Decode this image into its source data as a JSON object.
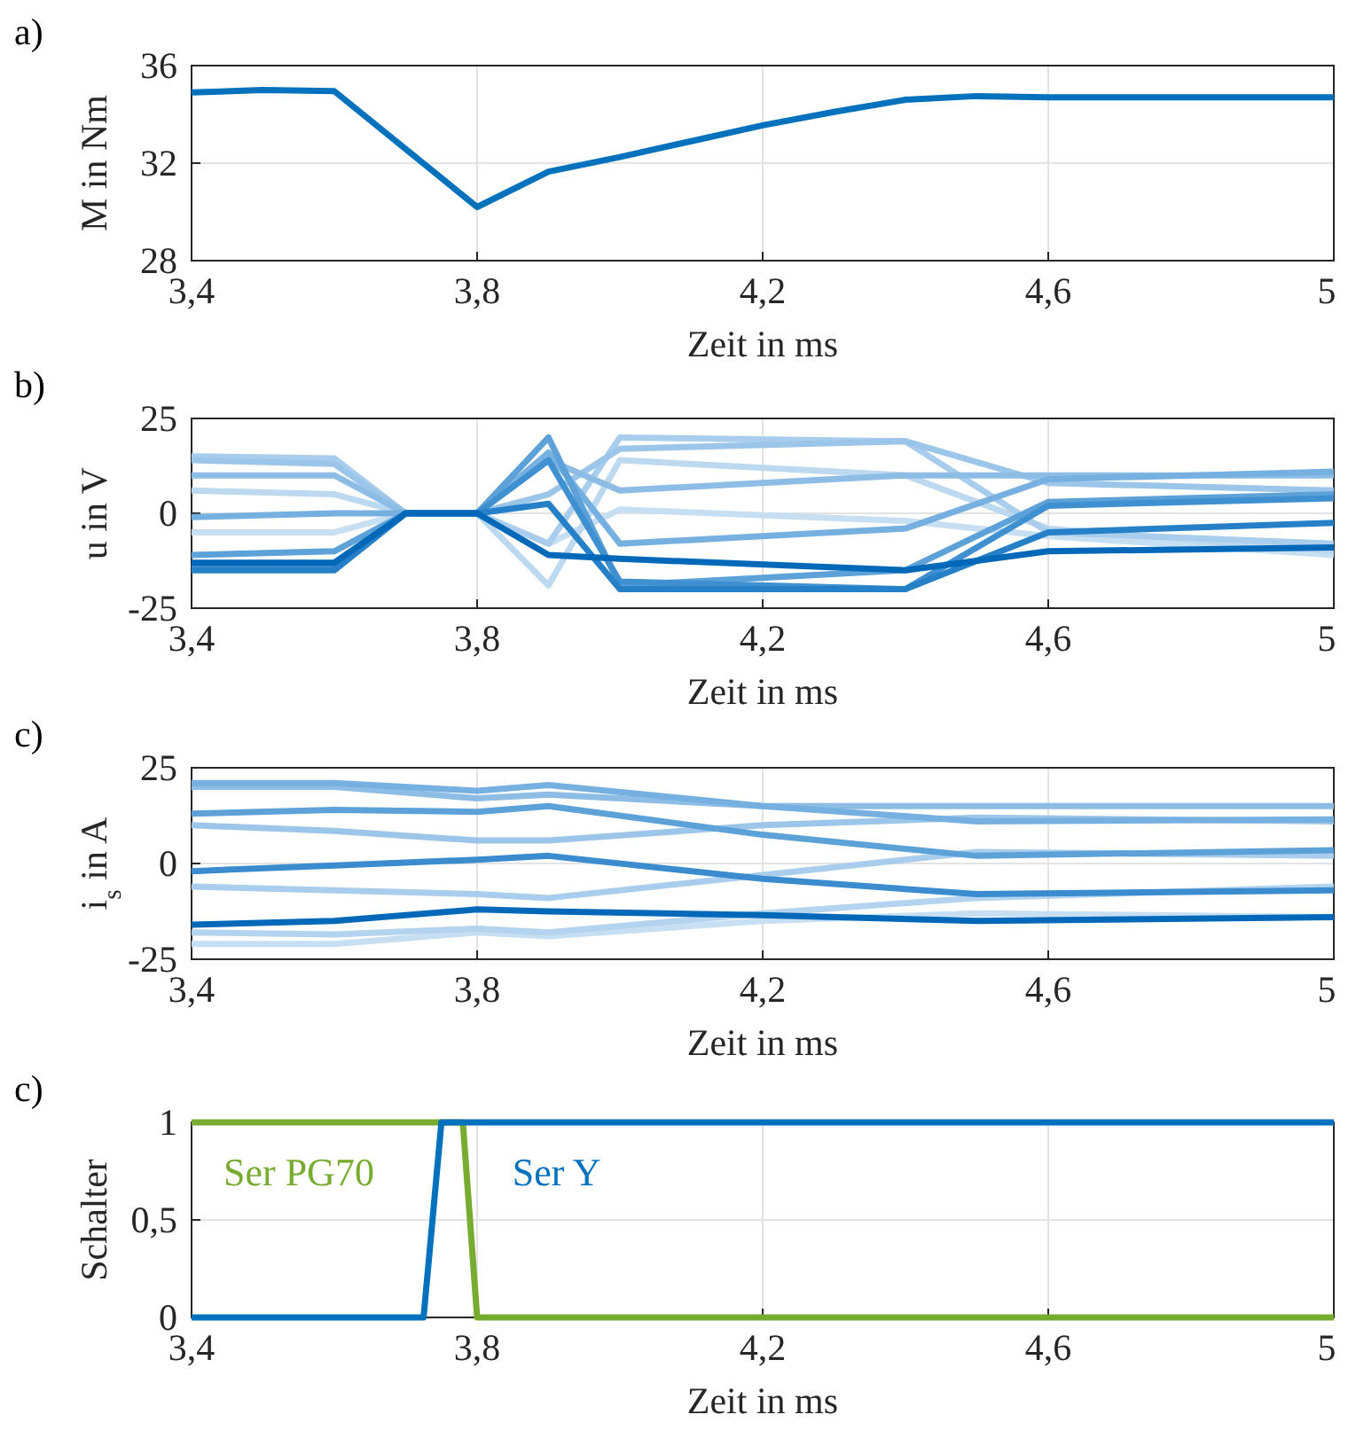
{
  "chart_data": [
    {
      "type": "line",
      "title": "a)",
      "xlabel": "Zeit in ms",
      "ylabel": "M in Nm",
      "xlim": [
        3.4,
        5
      ],
      "xticks": [
        {
          "value": 3.4,
          "label": "3,4"
        },
        {
          "value": 3.8,
          "label": "3,8"
        },
        {
          "value": 4.2,
          "label": "4,2"
        },
        {
          "value": 4.6,
          "label": "4,6"
        },
        {
          "value": 5,
          "label": "5"
        }
      ],
      "ylim": [
        28,
        36
      ],
      "yticks": [
        28,
        32,
        36
      ],
      "grid": true,
      "x": [
        3.4,
        3.5,
        3.6,
        3.8,
        3.9,
        4.0,
        4.1,
        4.2,
        4.3,
        4.4,
        4.5,
        4.6,
        4.8,
        5.0
      ],
      "series": [
        {
          "color": "#0072bd",
          "values": [
            34.9,
            35.0,
            34.95,
            30.2,
            31.65,
            32.25,
            32.9,
            33.55,
            34.1,
            34.6,
            34.75,
            34.7,
            34.7,
            34.7
          ]
        }
      ]
    },
    {
      "type": "line",
      "title": "b)",
      "xlabel": "Zeit in ms",
      "ylabel": "u in V",
      "xlim": [
        3.4,
        5
      ],
      "xticks": [
        {
          "value": 3.4,
          "label": "3,4"
        },
        {
          "value": 3.8,
          "label": "3,8"
        },
        {
          "value": 4.2,
          "label": "4,2"
        },
        {
          "value": 4.6,
          "label": "4,6"
        },
        {
          "value": 5,
          "label": "5"
        }
      ],
      "ylim": [
        -25,
        25
      ],
      "yticks": [
        -25,
        0,
        25
      ],
      "grid": true,
      "x": [
        3.4,
        3.6,
        3.7,
        3.8,
        3.9,
        4.0,
        4.4,
        4.6,
        5.0
      ],
      "series": [
        {
          "color": "#c6dff2",
          "values": [
            -5,
            -5,
            0,
            0,
            -8,
            1,
            -2,
            -6,
            -11
          ]
        },
        {
          "color": "#bcd9f0",
          "values": [
            6,
            5,
            0,
            0,
            -19,
            14,
            10,
            -4,
            -10
          ]
        },
        {
          "color": "#a9cdec",
          "values": [
            15,
            14.5,
            0,
            0,
            -8,
            20,
            19,
            -5,
            -8
          ]
        },
        {
          "color": "#9cc6e9",
          "values": [
            14,
            13,
            0,
            0,
            5,
            17,
            19,
            8,
            6
          ]
        },
        {
          "color": "#8dbde5",
          "values": [
            10,
            10,
            0,
            0,
            14,
            6,
            10,
            10,
            10
          ]
        },
        {
          "color": "#76b0e0",
          "values": [
            -1,
            0,
            0,
            0,
            16,
            -8,
            -4,
            9,
            11
          ]
        },
        {
          "color": "#5da1d9",
          "values": [
            -11,
            -10,
            0,
            0,
            20,
            -19,
            -15,
            3,
            5
          ]
        },
        {
          "color": "#3f90d1",
          "values": [
            -14,
            -14,
            0,
            0,
            14,
            -18,
            -20,
            2,
            4
          ]
        },
        {
          "color": "#2580c8",
          "values": [
            -15,
            -15,
            0,
            0,
            2.5,
            -20,
            -20,
            -5,
            -2.5
          ]
        },
        {
          "color": "#0068b8",
          "values": [
            -13,
            -13,
            0,
            0,
            -11,
            -12,
            -15,
            -10,
            -9
          ]
        }
      ]
    },
    {
      "type": "line",
      "title": "c)",
      "xlabel": "Zeit in ms",
      "ylabel": "i$_{s}$ in A",
      "xlim": [
        3.4,
        5
      ],
      "xticks": [
        {
          "value": 3.4,
          "label": "3,4"
        },
        {
          "value": 3.8,
          "label": "3,8"
        },
        {
          "value": 4.2,
          "label": "4,2"
        },
        {
          "value": 4.6,
          "label": "4,6"
        },
        {
          "value": 5,
          "label": "5"
        }
      ],
      "ylim": [
        -25,
        25
      ],
      "yticks": [
        -25,
        0,
        25
      ],
      "grid": true,
      "x": [
        3.4,
        3.6,
        3.8,
        3.9,
        4.2,
        4.5,
        5.0
      ],
      "series": [
        {
          "color": "#c6dff2",
          "values": [
            -21,
            -21,
            -18,
            -19,
            -15,
            -13,
            -14
          ]
        },
        {
          "color": "#b3d3ee",
          "values": [
            -18,
            -18.5,
            -17,
            -18,
            -13,
            -9,
            -6
          ]
        },
        {
          "color": "#a9cdec",
          "values": [
            -6,
            -7,
            -8,
            -9,
            -3,
            3,
            2
          ]
        },
        {
          "color": "#9cc6e9",
          "values": [
            10,
            8.5,
            6,
            6,
            10,
            12,
            11
          ]
        },
        {
          "color": "#8dbde5",
          "values": [
            20,
            20,
            17,
            18,
            15,
            15,
            15
          ]
        },
        {
          "color": "#76b0e0",
          "values": [
            21,
            21,
            19,
            20.5,
            15,
            11,
            11.5
          ]
        },
        {
          "color": "#5da1d9",
          "values": [
            13,
            14,
            13.5,
            15,
            7.5,
            2,
            3.5
          ]
        },
        {
          "color": "#3a8ccf",
          "values": [
            -2,
            -0.5,
            1,
            2,
            -4,
            -8,
            -7
          ]
        },
        {
          "color": "#0068b8",
          "values": [
            -16,
            -15,
            -12,
            -12.5,
            -13.5,
            -15,
            -14
          ]
        }
      ]
    },
    {
      "type": "line",
      "title": "c)",
      "xlabel": "Zeit in ms",
      "ylabel": "Schalter",
      "xlim": [
        3.4,
        5
      ],
      "xticks": [
        {
          "value": 3.4,
          "label": "3,4"
        },
        {
          "value": 3.8,
          "label": "3,8"
        },
        {
          "value": 4.2,
          "label": "4,2"
        },
        {
          "value": 4.6,
          "label": "4,6"
        },
        {
          "value": 5,
          "label": "5"
        }
      ],
      "ylim": [
        0,
        1
      ],
      "yticks": [
        0,
        {
          "value": 0.5,
          "label": "0,5"
        },
        1
      ],
      "grid": true,
      "series": [
        {
          "name": "Ser PG70",
          "color": "#77ac30",
          "x": [
            3.4,
            3.78,
            3.8,
            5.0
          ],
          "values": [
            1,
            1,
            0,
            0
          ]
        },
        {
          "name": "Ser Y",
          "color": "#0072bd",
          "x": [
            3.4,
            3.725,
            3.75,
            5.0
          ],
          "values": [
            0,
            0,
            1,
            1
          ]
        }
      ]
    }
  ]
}
